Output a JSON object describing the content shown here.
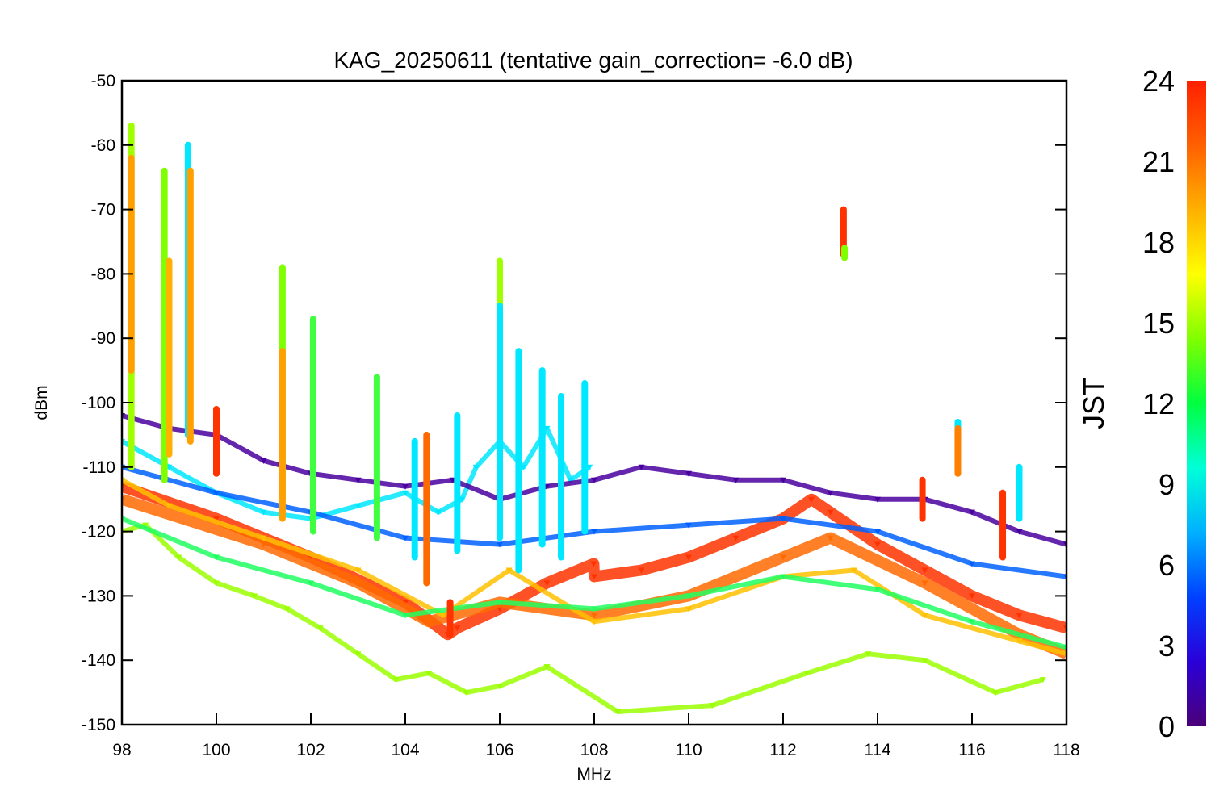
{
  "chart_data": {
    "type": "scatter",
    "title": "KAG_20250611 (tentative gain_correction= -6.0 dB)",
    "xlabel": "MHz",
    "ylabel": "dBm",
    "xlim": [
      98,
      118
    ],
    "ylim": [
      -150,
      -50
    ],
    "xticks": [
      "98",
      "100",
      "102",
      "104",
      "106",
      "108",
      "110",
      "112",
      "114",
      "116",
      "118"
    ],
    "yticks": [
      "-50",
      "-60",
      "-70",
      "-80",
      "-90",
      "-100",
      "-110",
      "-120",
      "-130",
      "-140",
      "-150"
    ],
    "grid": false,
    "colorbar": {
      "label": "JST",
      "range": [
        0,
        24
      ],
      "ticks": [
        "0",
        "3",
        "6",
        "9",
        "12",
        "15",
        "18",
        "21",
        "24"
      ],
      "colormap": "rainbow",
      "colors": [
        "#4b0078",
        "#2a00d8",
        "#0040ff",
        "#00b0ff",
        "#00ffd8",
        "#00ff40",
        "#80ff00",
        "#ffff00",
        "#ffb000",
        "#ff6000",
        "#ff2000"
      ]
    },
    "series": [
      {
        "color": "#ff3300",
        "jst": 23,
        "x": [
          98.0,
          100.0,
          102.0,
          104.0,
          104.9,
          105.1,
          106.0,
          107.0,
          107.99,
          108.0,
          109.0,
          110.0,
          111.0,
          112.0,
          112.6,
          113.0,
          114.0,
          115.0,
          116.0,
          117.0,
          118.0
        ],
        "y": [
          -113,
          -118,
          -124,
          -131,
          -136,
          -135,
          -132,
          -128,
          -125,
          -127,
          -126,
          -124,
          -121,
          -118,
          -115,
          -117,
          -122,
          -126,
          -130,
          -133,
          -135
        ]
      },
      {
        "color": "#ff6a00",
        "jst": 21,
        "x": [
          98.0,
          101.0,
          103.0,
          104.5,
          106.0,
          108.0,
          110.0,
          112.0,
          113.0,
          115.0,
          117.0,
          118.0
        ],
        "y": [
          -115,
          -122,
          -128,
          -134,
          -131,
          -133,
          -130,
          -124,
          -121,
          -128,
          -136,
          -139
        ]
      },
      {
        "color": "#ffc000",
        "jst": 19,
        "x": [
          98.0,
          99.0,
          101.0,
          103.0,
          104.8,
          106.2,
          108.0,
          110.0,
          112.0,
          113.5,
          115.0,
          117.0,
          118.0
        ],
        "y": [
          -112,
          -116,
          -121,
          -126,
          -133,
          -126,
          -134,
          -132,
          -127,
          -126,
          -133,
          -137,
          -139
        ]
      },
      {
        "color": "#9aff00",
        "jst": 17,
        "x": [
          98.0,
          98.5,
          99.2,
          100.0,
          100.8,
          101.5,
          102.2,
          103.0,
          103.8,
          104.5,
          105.3,
          106.0,
          107.0,
          108.5,
          110.5,
          112.5,
          113.8,
          115.0,
          116.5,
          117.5
        ],
        "y": [
          -120,
          -119,
          -124,
          -128,
          -130,
          -132,
          -135,
          -139,
          -143,
          -142,
          -145,
          -144,
          -141,
          -148,
          -147,
          -142,
          -139,
          -140,
          -145,
          -143
        ]
      },
      {
        "color": "#20ff60",
        "jst": 14,
        "x": [
          98.0,
          100.0,
          102.0,
          104.0,
          106.0,
          108.0,
          110.0,
          112.0,
          114.0,
          116.0,
          118.0
        ],
        "y": [
          -118,
          -124,
          -128,
          -133,
          -131,
          -132,
          -130,
          -127,
          -129,
          -134,
          -138
        ]
      },
      {
        "color": "#00e8ff",
        "jst": 10,
        "x": [
          98.0,
          99.0,
          100.0,
          101.0,
          102.0,
          103.0,
          104.0,
          104.7,
          105.2,
          105.5,
          106.0,
          106.5,
          107.0,
          107.5,
          107.9
        ],
        "y": [
          -106,
          -110,
          -114,
          -117,
          -118,
          -116,
          -114,
          -117,
          -115,
          -110,
          -106,
          -110,
          -104,
          -112,
          -110
        ]
      },
      {
        "color": "#0060ff",
        "jst": 5,
        "x": [
          98.0,
          100.0,
          102.0,
          104.0,
          106.0,
          108.0,
          110.0,
          112.0,
          114.0,
          116.0,
          118.0
        ],
        "y": [
          -110,
          -114,
          -117,
          -121,
          -122,
          -120,
          -119,
          -118,
          -120,
          -125,
          -127
        ]
      },
      {
        "color": "#4a00a0",
        "jst": 1,
        "x": [
          98.0,
          99.0,
          100.0,
          101.0,
          102.0,
          103.0,
          104.0,
          105.0,
          106.0,
          107.0,
          108.0,
          109.0,
          110.0,
          111.0,
          112.0,
          113.0,
          114.0,
          115.0,
          116.0,
          117.0,
          118.0
        ],
        "y": [
          -102,
          -104,
          -105,
          -109,
          -111,
          -112,
          -113,
          -112,
          -115,
          -113,
          -112,
          -110,
          -111,
          -112,
          -112,
          -114,
          -115,
          -115,
          -117,
          -120,
          -122
        ]
      }
    ],
    "spikes": [
      {
        "x": 98.2,
        "top": -57,
        "bottom": -110,
        "color": "#a0ff00"
      },
      {
        "x": 98.2,
        "top": -62,
        "bottom": -95,
        "color": "#ffa000"
      },
      {
        "x": 98.9,
        "top": -64,
        "bottom": -112,
        "color": "#80ff00"
      },
      {
        "x": 99.0,
        "top": -78,
        "bottom": -108,
        "color": "#ffb000"
      },
      {
        "x": 99.4,
        "top": -60,
        "bottom": -105,
        "color": "#00e8ff"
      },
      {
        "x": 99.45,
        "top": -64,
        "bottom": -106,
        "color": "#ffa000"
      },
      {
        "x": 100.0,
        "top": -101,
        "bottom": -111,
        "color": "#ff3300"
      },
      {
        "x": 101.4,
        "top": -79,
        "bottom": -115,
        "color": "#80ff00"
      },
      {
        "x": 101.4,
        "top": -92,
        "bottom": -118,
        "color": "#ffa000"
      },
      {
        "x": 102.05,
        "top": -87,
        "bottom": -120,
        "color": "#40ff40"
      },
      {
        "x": 103.4,
        "top": -96,
        "bottom": -121,
        "color": "#40ff40"
      },
      {
        "x": 104.2,
        "top": -106,
        "bottom": -124,
        "color": "#00e8ff"
      },
      {
        "x": 104.45,
        "top": -105,
        "bottom": -128,
        "color": "#ff6a00"
      },
      {
        "x": 104.95,
        "top": -131,
        "bottom": -136,
        "color": "#ff3300"
      },
      {
        "x": 105.1,
        "top": -102,
        "bottom": -123,
        "color": "#00e8ff"
      },
      {
        "x": 106.0,
        "top": -78,
        "bottom": -112,
        "color": "#a0ff00"
      },
      {
        "x": 106.0,
        "top": -85,
        "bottom": -121,
        "color": "#00e8ff"
      },
      {
        "x": 106.4,
        "top": -92,
        "bottom": -126,
        "color": "#00e8ff"
      },
      {
        "x": 106.9,
        "top": -95,
        "bottom": -122,
        "color": "#00e8ff"
      },
      {
        "x": 107.3,
        "top": -99,
        "bottom": -124,
        "color": "#00e8ff"
      },
      {
        "x": 107.8,
        "top": -97,
        "bottom": -120,
        "color": "#00e8ff"
      },
      {
        "x": 113.28,
        "top": -70,
        "bottom": -77,
        "color": "#ff3300"
      },
      {
        "x": 113.3,
        "top": -76,
        "bottom": -77.5,
        "color": "#80ff00"
      },
      {
        "x": 115.7,
        "top": -103,
        "bottom": -106,
        "color": "#00e8ff"
      },
      {
        "x": 115.7,
        "top": -104,
        "bottom": -111,
        "color": "#ff8000"
      },
      {
        "x": 114.95,
        "top": -112,
        "bottom": -118,
        "color": "#ff3300"
      },
      {
        "x": 116.65,
        "top": -114,
        "bottom": -124,
        "color": "#ff3300"
      },
      {
        "x": 117.0,
        "top": -110,
        "bottom": -118,
        "color": "#00e8ff"
      }
    ]
  }
}
